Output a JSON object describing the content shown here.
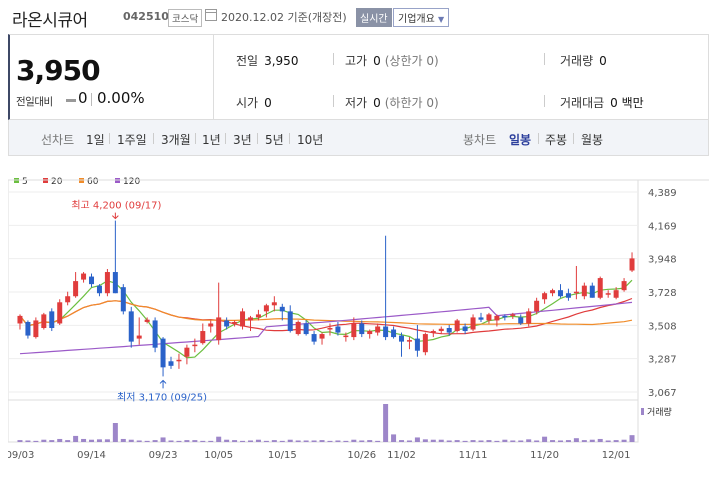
{
  "header": {
    "name": "라온시큐어",
    "code": "042510",
    "market": "코스닥",
    "date": "2020.12.02 기준(개장전)",
    "realtime": "실시간",
    "corp_info": "기업개요"
  },
  "quote": {
    "price": "3,950",
    "change_label": "전일대비",
    "change": "0",
    "change_pct": "0.00%",
    "prev_label": "전일",
    "prev": "3,950",
    "high_label": "고가",
    "high": "0",
    "high_note": "(상한가 0)",
    "volume_label": "거래량",
    "volume": "0",
    "open_label": "시가",
    "open": "0",
    "low_label": "저가",
    "low": "0",
    "low_note": "(하한가 0)",
    "amount_label": "거래대금",
    "amount": "0 백만"
  },
  "periods": {
    "line_label": "선차트",
    "items": [
      "1일",
      "1주일",
      "3개월",
      "1년",
      "3년",
      "5년",
      "10년"
    ],
    "candle_label": "봉차트",
    "candles": [
      "일봉",
      "주봉",
      "월봉"
    ],
    "selected_candle": "일봉"
  },
  "chart_data": {
    "type": "candlestick",
    "legend": [
      {
        "name": "5",
        "color": "#6bbf3f"
      },
      {
        "name": "20",
        "color": "#e03c3c"
      },
      {
        "name": "60",
        "color": "#f08c2a"
      },
      {
        "name": "120",
        "color": "#9b5ac8"
      }
    ],
    "y_ticks": [
      "4,389",
      "4,169",
      "3,948",
      "3,728",
      "3,508",
      "3,287",
      "3,067"
    ],
    "ylim": [
      3067,
      4389
    ],
    "x_ticks": [
      "09/03",
      "09/14",
      "09/23",
      "10/05",
      "10/15",
      "10/26",
      "11/02",
      "11/11",
      "11/20",
      "12/01"
    ],
    "high_annotation": "최고 4,200 (09/17)",
    "low_annotation": "최저 3,170 (09/25)",
    "volume_label": "거래량",
    "candles": [
      {
        "o": 3520,
        "h": 3580,
        "l": 3480,
        "c": 3570
      },
      {
        "o": 3530,
        "h": 3540,
        "l": 3420,
        "c": 3440
      },
      {
        "o": 3430,
        "h": 3560,
        "l": 3420,
        "c": 3540
      },
      {
        "o": 3490,
        "h": 3590,
        "l": 3480,
        "c": 3580
      },
      {
        "o": 3600,
        "h": 3620,
        "l": 3470,
        "c": 3490
      },
      {
        "o": 3520,
        "h": 3680,
        "l": 3510,
        "c": 3660
      },
      {
        "o": 3660,
        "h": 3730,
        "l": 3640,
        "c": 3700
      },
      {
        "o": 3700,
        "h": 3860,
        "l": 3690,
        "c": 3800
      },
      {
        "o": 3810,
        "h": 3860,
        "l": 3790,
        "c": 3850
      },
      {
        "o": 3830,
        "h": 3850,
        "l": 3760,
        "c": 3780
      },
      {
        "o": 3770,
        "h": 3780,
        "l": 3700,
        "c": 3720
      },
      {
        "o": 3720,
        "h": 3880,
        "l": 3700,
        "c": 3860
      },
      {
        "o": 3860,
        "h": 4200,
        "l": 3720,
        "c": 3720
      },
      {
        "o": 3760,
        "h": 3780,
        "l": 3580,
        "c": 3600
      },
      {
        "o": 3600,
        "h": 3630,
        "l": 3360,
        "c": 3400
      },
      {
        "o": 3420,
        "h": 3560,
        "l": 3380,
        "c": 3440
      },
      {
        "o": 3530,
        "h": 3560,
        "l": 3520,
        "c": 3545
      },
      {
        "o": 3540,
        "h": 3560,
        "l": 3330,
        "c": 3360
      },
      {
        "o": 3420,
        "h": 3430,
        "l": 3170,
        "c": 3230
      },
      {
        "o": 3270,
        "h": 3300,
        "l": 3220,
        "c": 3240
      },
      {
        "o": 3270,
        "h": 3320,
        "l": 3220,
        "c": 3280
      },
      {
        "o": 3300,
        "h": 3380,
        "l": 3250,
        "c": 3360
      },
      {
        "o": 3380,
        "h": 3420,
        "l": 3330,
        "c": 3380
      },
      {
        "o": 3390,
        "h": 3520,
        "l": 3380,
        "c": 3470
      },
      {
        "o": 3500,
        "h": 3540,
        "l": 3460,
        "c": 3520
      },
      {
        "o": 3410,
        "h": 3790,
        "l": 3380,
        "c": 3560
      },
      {
        "o": 3540,
        "h": 3560,
        "l": 3480,
        "c": 3500
      },
      {
        "o": 3520,
        "h": 3540,
        "l": 3500,
        "c": 3530
      },
      {
        "o": 3500,
        "h": 3620,
        "l": 3480,
        "c": 3600
      },
      {
        "o": 3540,
        "h": 3570,
        "l": 3470,
        "c": 3560
      },
      {
        "o": 3560,
        "h": 3610,
        "l": 3540,
        "c": 3580
      },
      {
        "o": 3600,
        "h": 3650,
        "l": 3560,
        "c": 3640
      },
      {
        "o": 3640,
        "h": 3700,
        "l": 3600,
        "c": 3660
      },
      {
        "o": 3630,
        "h": 3650,
        "l": 3540,
        "c": 3600
      },
      {
        "o": 3600,
        "h": 3640,
        "l": 3460,
        "c": 3470
      },
      {
        "o": 3450,
        "h": 3540,
        "l": 3440,
        "c": 3530
      },
      {
        "o": 3520,
        "h": 3540,
        "l": 3440,
        "c": 3450
      },
      {
        "o": 3450,
        "h": 3470,
        "l": 3380,
        "c": 3400
      },
      {
        "o": 3420,
        "h": 3460,
        "l": 3380,
        "c": 3450
      },
      {
        "o": 3480,
        "h": 3520,
        "l": 3440,
        "c": 3490
      },
      {
        "o": 3500,
        "h": 3530,
        "l": 3440,
        "c": 3460
      },
      {
        "o": 3430,
        "h": 3460,
        "l": 3400,
        "c": 3440
      },
      {
        "o": 3430,
        "h": 3560,
        "l": 3410,
        "c": 3520
      },
      {
        "o": 3520,
        "h": 3540,
        "l": 3430,
        "c": 3450
      },
      {
        "o": 3450,
        "h": 3480,
        "l": 3420,
        "c": 3470
      },
      {
        "o": 3460,
        "h": 3520,
        "l": 3440,
        "c": 3500
      },
      {
        "o": 3500,
        "h": 4100,
        "l": 3410,
        "c": 3430
      },
      {
        "o": 3480,
        "h": 3500,
        "l": 3420,
        "c": 3430
      },
      {
        "o": 3440,
        "h": 3460,
        "l": 3300,
        "c": 3400
      },
      {
        "o": 3400,
        "h": 3430,
        "l": 3350,
        "c": 3410
      },
      {
        "o": 3420,
        "h": 3510,
        "l": 3300,
        "c": 3340
      },
      {
        "o": 3330,
        "h": 3460,
        "l": 3310,
        "c": 3450
      },
      {
        "o": 3460,
        "h": 3480,
        "l": 3430,
        "c": 3470
      },
      {
        "o": 3470,
        "h": 3500,
        "l": 3450,
        "c": 3485
      },
      {
        "o": 3490,
        "h": 3510,
        "l": 3440,
        "c": 3460
      },
      {
        "o": 3470,
        "h": 3550,
        "l": 3460,
        "c": 3540
      },
      {
        "o": 3500,
        "h": 3520,
        "l": 3450,
        "c": 3470
      },
      {
        "o": 3480,
        "h": 3580,
        "l": 3470,
        "c": 3560
      },
      {
        "o": 3560,
        "h": 3590,
        "l": 3530,
        "c": 3545
      },
      {
        "o": 3540,
        "h": 3590,
        "l": 3520,
        "c": 3580
      },
      {
        "o": 3540,
        "h": 3580,
        "l": 3500,
        "c": 3570
      },
      {
        "o": 3570,
        "h": 3580,
        "l": 3540,
        "c": 3560
      },
      {
        "o": 3570,
        "h": 3590,
        "l": 3550,
        "c": 3580
      },
      {
        "o": 3560,
        "h": 3580,
        "l": 3510,
        "c": 3520
      },
      {
        "o": 3520,
        "h": 3620,
        "l": 3500,
        "c": 3600
      },
      {
        "o": 3600,
        "h": 3690,
        "l": 3580,
        "c": 3670
      },
      {
        "o": 3680,
        "h": 3730,
        "l": 3650,
        "c": 3720
      },
      {
        "o": 3720,
        "h": 3750,
        "l": 3700,
        "c": 3740
      },
      {
        "o": 3740,
        "h": 3780,
        "l": 3690,
        "c": 3700
      },
      {
        "o": 3720,
        "h": 3750,
        "l": 3670,
        "c": 3690
      },
      {
        "o": 3720,
        "h": 3900,
        "l": 3680,
        "c": 3730
      },
      {
        "o": 3700,
        "h": 3790,
        "l": 3680,
        "c": 3770
      },
      {
        "o": 3770,
        "h": 3790,
        "l": 3690,
        "c": 3690
      },
      {
        "o": 3690,
        "h": 3830,
        "l": 3680,
        "c": 3820
      },
      {
        "o": 3710,
        "h": 3740,
        "l": 3690,
        "c": 3720
      },
      {
        "o": 3690,
        "h": 3760,
        "l": 3680,
        "c": 3740
      },
      {
        "o": 3740,
        "h": 3820,
        "l": 3730,
        "c": 3800
      },
      {
        "o": 3870,
        "h": 3990,
        "l": 3860,
        "c": 3950
      }
    ],
    "volumes": [
      0.05,
      0.04,
      0.03,
      0.06,
      0.05,
      0.08,
      0.05,
      0.16,
      0.08,
      0.06,
      0.07,
      0.07,
      0.5,
      0.08,
      0.06,
      0.04,
      0.03,
      0.05,
      0.12,
      0.04,
      0.03,
      0.05,
      0.05,
      0.03,
      0.03,
      0.14,
      0.06,
      0.05,
      0.03,
      0.04,
      0.06,
      0.03,
      0.05,
      0.03,
      0.06,
      0.04,
      0.04,
      0.04,
      0.05,
      0.03,
      0.04,
      0.03,
      0.06,
      0.04,
      0.05,
      0.03,
      1.0,
      0.2,
      0.05,
      0.04,
      0.12,
      0.07,
      0.06,
      0.06,
      0.04,
      0.05,
      0.03,
      0.05,
      0.04,
      0.05,
      0.03,
      0.06,
      0.04,
      0.04,
      0.07,
      0.04,
      0.14,
      0.05,
      0.04,
      0.05,
      0.1,
      0.05,
      0.06,
      0.08,
      0.04,
      0.05,
      0.06,
      0.18
    ]
  }
}
